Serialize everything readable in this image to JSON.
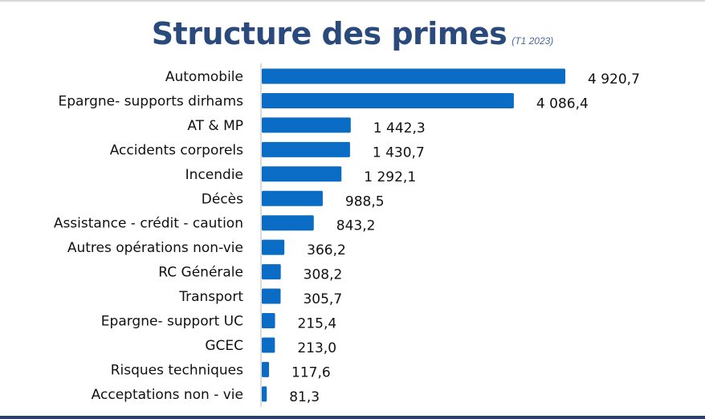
{
  "chart_data": {
    "type": "bar",
    "orientation": "horizontal",
    "title": "Structure des primes",
    "subtitle": "(T1 2023)",
    "xlabel": "",
    "ylabel": "",
    "grid": false,
    "legend": "none",
    "bar_color": "#0a6cc4",
    "title_color": "#2a4a7c",
    "xlim": [
      0,
      4920.7
    ],
    "categories": [
      "Automobile",
      "Epargne- supports dirhams",
      "AT & MP",
      "Accidents corporels",
      "Incendie",
      "Décès",
      "Assistance - crédit - caution",
      "Autres opérations non-vie",
      "RC Générale",
      "Transport",
      "Epargne- support UC",
      "GCEC",
      "Risques techniques",
      "Acceptations non - vie"
    ],
    "values": [
      4920.7,
      4086.4,
      1442.3,
      1430.7,
      1292.1,
      988.5,
      843.2,
      366.2,
      308.2,
      305.7,
      215.4,
      213.0,
      117.6,
      81.3
    ],
    "value_labels": [
      "4 920,7",
      "4 086,4",
      "1 442,3",
      "1 430,7",
      "1 292,1",
      "988,5",
      "843,2",
      "366,2",
      "308,2",
      "305,7",
      "215,4",
      "213,0",
      "117,6",
      "81,3"
    ]
  }
}
